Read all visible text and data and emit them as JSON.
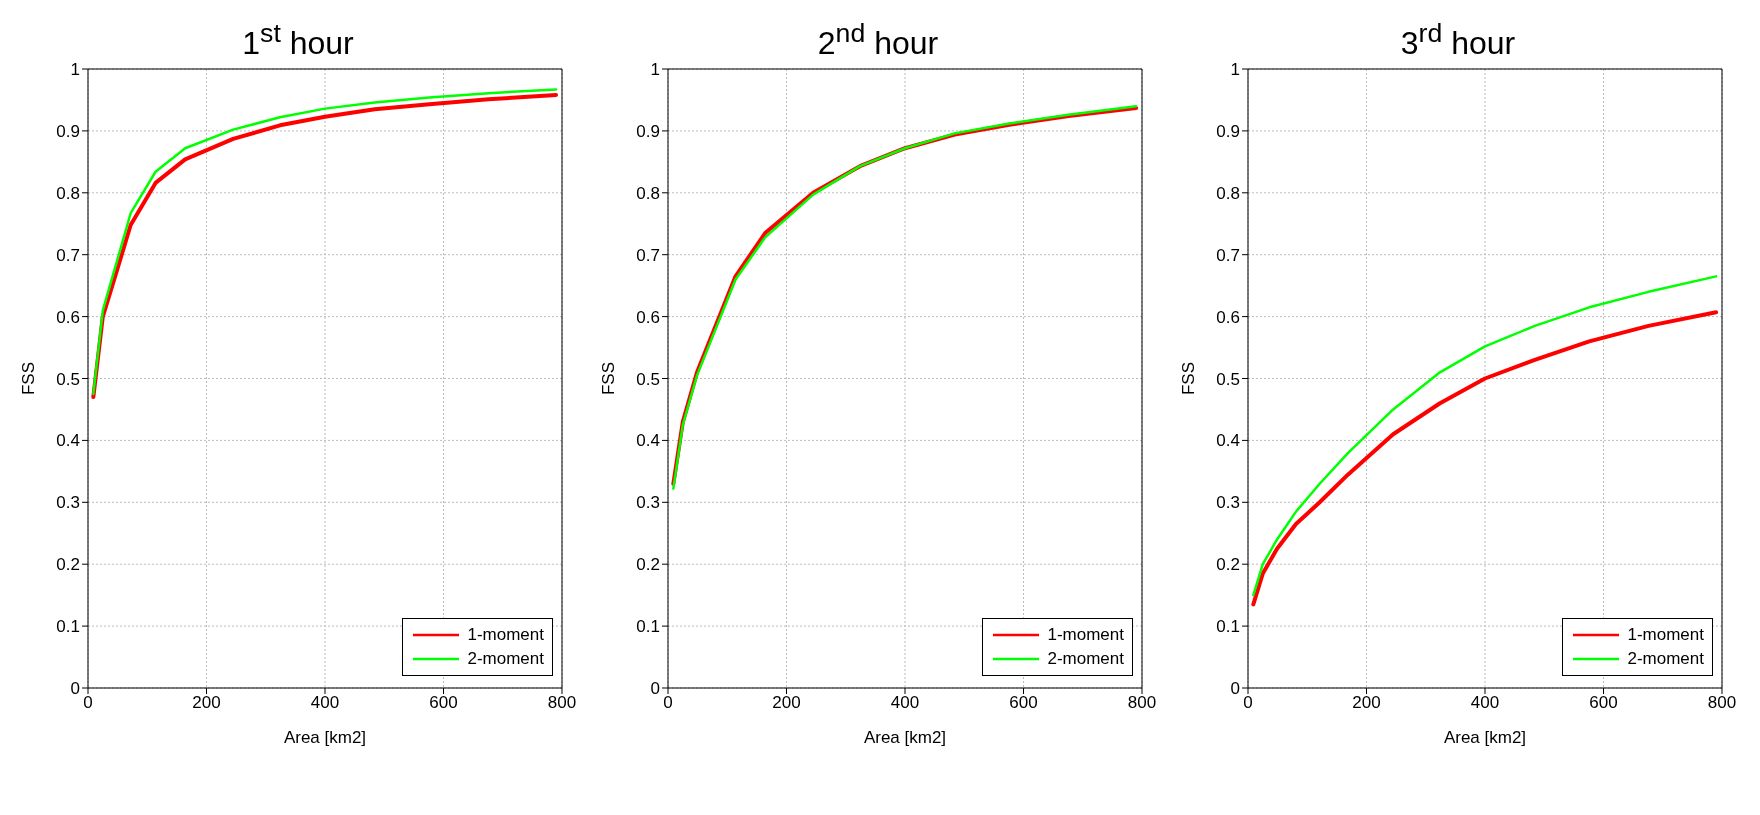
{
  "chart_data": [
    {
      "type": "line",
      "title": "1$^{st}$ hour",
      "xlabel": "Area [km2]",
      "ylabel": "FSS",
      "x": [
        9,
        25,
        49,
        72,
        114,
        164,
        245,
        324,
        400,
        484,
        576,
        676,
        790
      ],
      "xlim": [
        0,
        800
      ],
      "xticks": [
        0,
        200,
        400,
        600,
        800
      ],
      "ylim": [
        0,
        1
      ],
      "yticks": [
        0,
        0.1,
        0.2,
        0.3,
        0.4,
        0.5,
        0.6,
        0.7,
        0.8,
        0.9,
        1
      ],
      "grid": true,
      "legend": "bottom right",
      "line_style": "solid",
      "series": [
        {
          "name": "1-moment",
          "color": "#ff0000",
          "values": [
            0.47,
            0.6,
            0.675,
            0.748,
            0.816,
            0.854,
            0.887,
            0.909,
            0.923,
            0.935,
            0.943,
            0.951,
            0.958
          ]
        },
        {
          "name": "2-moment",
          "color": "#00ff00",
          "values": [
            0.475,
            0.61,
            0.69,
            0.767,
            0.834,
            0.872,
            0.902,
            0.922,
            0.936,
            0.946,
            0.954,
            0.961,
            0.967
          ]
        }
      ]
    },
    {
      "type": "line",
      "title": "2$^{nd}$ hour",
      "xlabel": "Area [km2]",
      "ylabel": "FSS",
      "x": [
        9,
        25,
        49,
        72,
        114,
        164,
        245,
        324,
        400,
        484,
        576,
        676,
        790
      ],
      "xlim": [
        0,
        800
      ],
      "xticks": [
        0,
        200,
        400,
        600,
        800
      ],
      "ylim": [
        0,
        1
      ],
      "yticks": [
        0,
        0.1,
        0.2,
        0.3,
        0.4,
        0.5,
        0.6,
        0.7,
        0.8,
        0.9,
        1
      ],
      "grid": true,
      "legend": "bottom right",
      "line_style": "solid",
      "series": [
        {
          "name": "1-moment",
          "color": "#ff0000",
          "values": [
            0.33,
            0.43,
            0.51,
            0.565,
            0.665,
            0.735,
            0.8,
            0.843,
            0.872,
            0.894,
            0.91,
            0.924,
            0.937
          ]
        },
        {
          "name": "2-moment",
          "color": "#00ff00",
          "values": [
            0.322,
            0.425,
            0.505,
            0.56,
            0.66,
            0.728,
            0.797,
            0.843,
            0.872,
            0.896,
            0.912,
            0.926,
            0.94
          ]
        }
      ]
    },
    {
      "type": "line",
      "title": "3$^{rd}$ hour",
      "xlabel": "Area [km2]",
      "ylabel": "FSS",
      "x": [
        9,
        25,
        49,
        81,
        121,
        169,
        245,
        324,
        400,
        484,
        576,
        676,
        790
      ],
      "xlim": [
        0,
        800
      ],
      "xticks": [
        0,
        200,
        400,
        600,
        800
      ],
      "ylim": [
        0,
        1
      ],
      "yticks": [
        0,
        0.1,
        0.2,
        0.3,
        0.4,
        0.5,
        0.6,
        0.7,
        0.8,
        0.9,
        1
      ],
      "grid": true,
      "legend": "bottom right",
      "line_style": "solid",
      "series": [
        {
          "name": "1-moment",
          "color": "#ff0000",
          "values": [
            0.135,
            0.185,
            0.225,
            0.265,
            0.3,
            0.345,
            0.41,
            0.46,
            0.5,
            0.53,
            0.56,
            0.585,
            0.607
          ]
        },
        {
          "name": "2-moment",
          "color": "#00ff00",
          "values": [
            0.15,
            0.2,
            0.24,
            0.285,
            0.33,
            0.38,
            0.45,
            0.51,
            0.552,
            0.585,
            0.615,
            0.64,
            0.665
          ]
        }
      ]
    }
  ]
}
